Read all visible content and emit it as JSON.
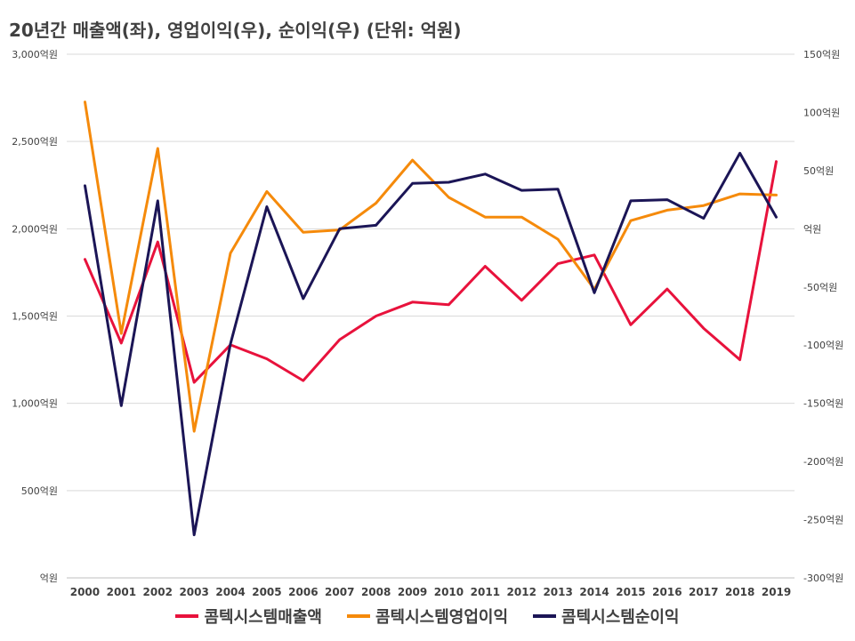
{
  "chart_data": {
    "type": "line",
    "title": "20년간 매출액(좌), 영업이익(우), 순이익(우) (단위: 억원)",
    "categories": [
      "2000",
      "2001",
      "2002",
      "2003",
      "2004",
      "2005",
      "2006",
      "2007",
      "2008",
      "2009",
      "2010",
      "2011",
      "2012",
      "2013",
      "2014",
      "2015",
      "2016",
      "2017",
      "2018",
      "2019"
    ],
    "y_left": {
      "ylim": [
        0,
        3000
      ],
      "ticks": [
        0,
        500,
        1000,
        1500,
        2000,
        2500,
        3000
      ],
      "tick_labels": [
        "억원",
        "500억원",
        "1,000억원",
        "1,500억원",
        "2,000억원",
        "2,500억원",
        "3,000억원"
      ]
    },
    "y_right": {
      "ylim": [
        -300,
        150
      ],
      "ticks": [
        -300,
        -250,
        -200,
        -150,
        -100,
        -50,
        0,
        50,
        100,
        150
      ],
      "tick_labels": [
        "-300억원",
        "-250억원",
        "-200억원",
        "-150억원",
        "-100억원",
        "-50억원",
        "억원",
        "50억원",
        "100억원",
        "150억원"
      ]
    },
    "grid": true,
    "legend_position": "bottom",
    "series": [
      {
        "name": "콤텍시스템매출액",
        "axis": "left",
        "color": "#e8123c",
        "values": [
          1825,
          1345,
          1925,
          1120,
          1335,
          1255,
          1130,
          1365,
          1500,
          1580,
          1565,
          1785,
          1590,
          1800,
          1850,
          1450,
          1655,
          1430,
          1250,
          2385
        ]
      },
      {
        "name": "콤텍시스템영업이익",
        "axis": "right",
        "color": "#f58a0b",
        "values": [
          109,
          -90,
          69,
          -174,
          -21,
          32,
          -3,
          -1,
          22,
          59,
          27,
          10,
          10,
          -9,
          -52,
          7,
          16,
          20,
          30,
          29
        ]
      },
      {
        "name": "콤텍시스템순이익",
        "axis": "right",
        "color": "#1b1556",
        "values": [
          37,
          -152,
          24,
          -263,
          -99,
          19,
          -60,
          0,
          3,
          39,
          40,
          47,
          33,
          34,
          -55,
          24,
          25,
          9,
          65,
          10
        ]
      }
    ]
  }
}
